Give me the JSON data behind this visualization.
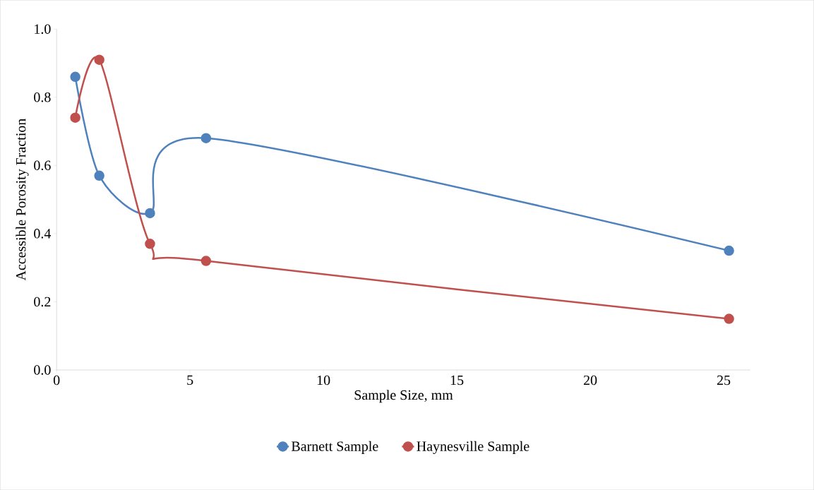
{
  "chart_data": {
    "type": "line",
    "xlabel": "Sample Size, mm",
    "ylabel": "Accessible Porosity Fraction",
    "xlim": [
      0,
      26
    ],
    "xticks": [
      0,
      5,
      10,
      15,
      20,
      25
    ],
    "ylim": [
      0,
      1
    ],
    "yticks": [
      {
        "value": 0,
        "label": "0.0"
      },
      {
        "value": 0.2,
        "label": "0.2"
      },
      {
        "value": 0.4,
        "label": "0.4"
      },
      {
        "value": 0.6,
        "label": "0.6"
      },
      {
        "value": 0.8,
        "label": "0.8"
      },
      {
        "value": 1,
        "label": "1.0"
      }
    ],
    "grid": false,
    "legend": "bottom",
    "marker": "circle",
    "line_style": "solid",
    "series": [
      {
        "name": "Barnett Sample",
        "color": "#4f81bd",
        "x": [
          0.7,
          1.6,
          3.5,
          5.6,
          25.2
        ],
        "values": [
          0.86,
          0.57,
          0.46,
          0.68,
          0.35
        ]
      },
      {
        "name": "Haynesville Sample",
        "color": "#c0504d",
        "x": [
          0.7,
          1.6,
          3.5,
          5.6,
          25.2
        ],
        "values": [
          0.74,
          0.91,
          0.37,
          0.32,
          0.15
        ]
      }
    ]
  }
}
